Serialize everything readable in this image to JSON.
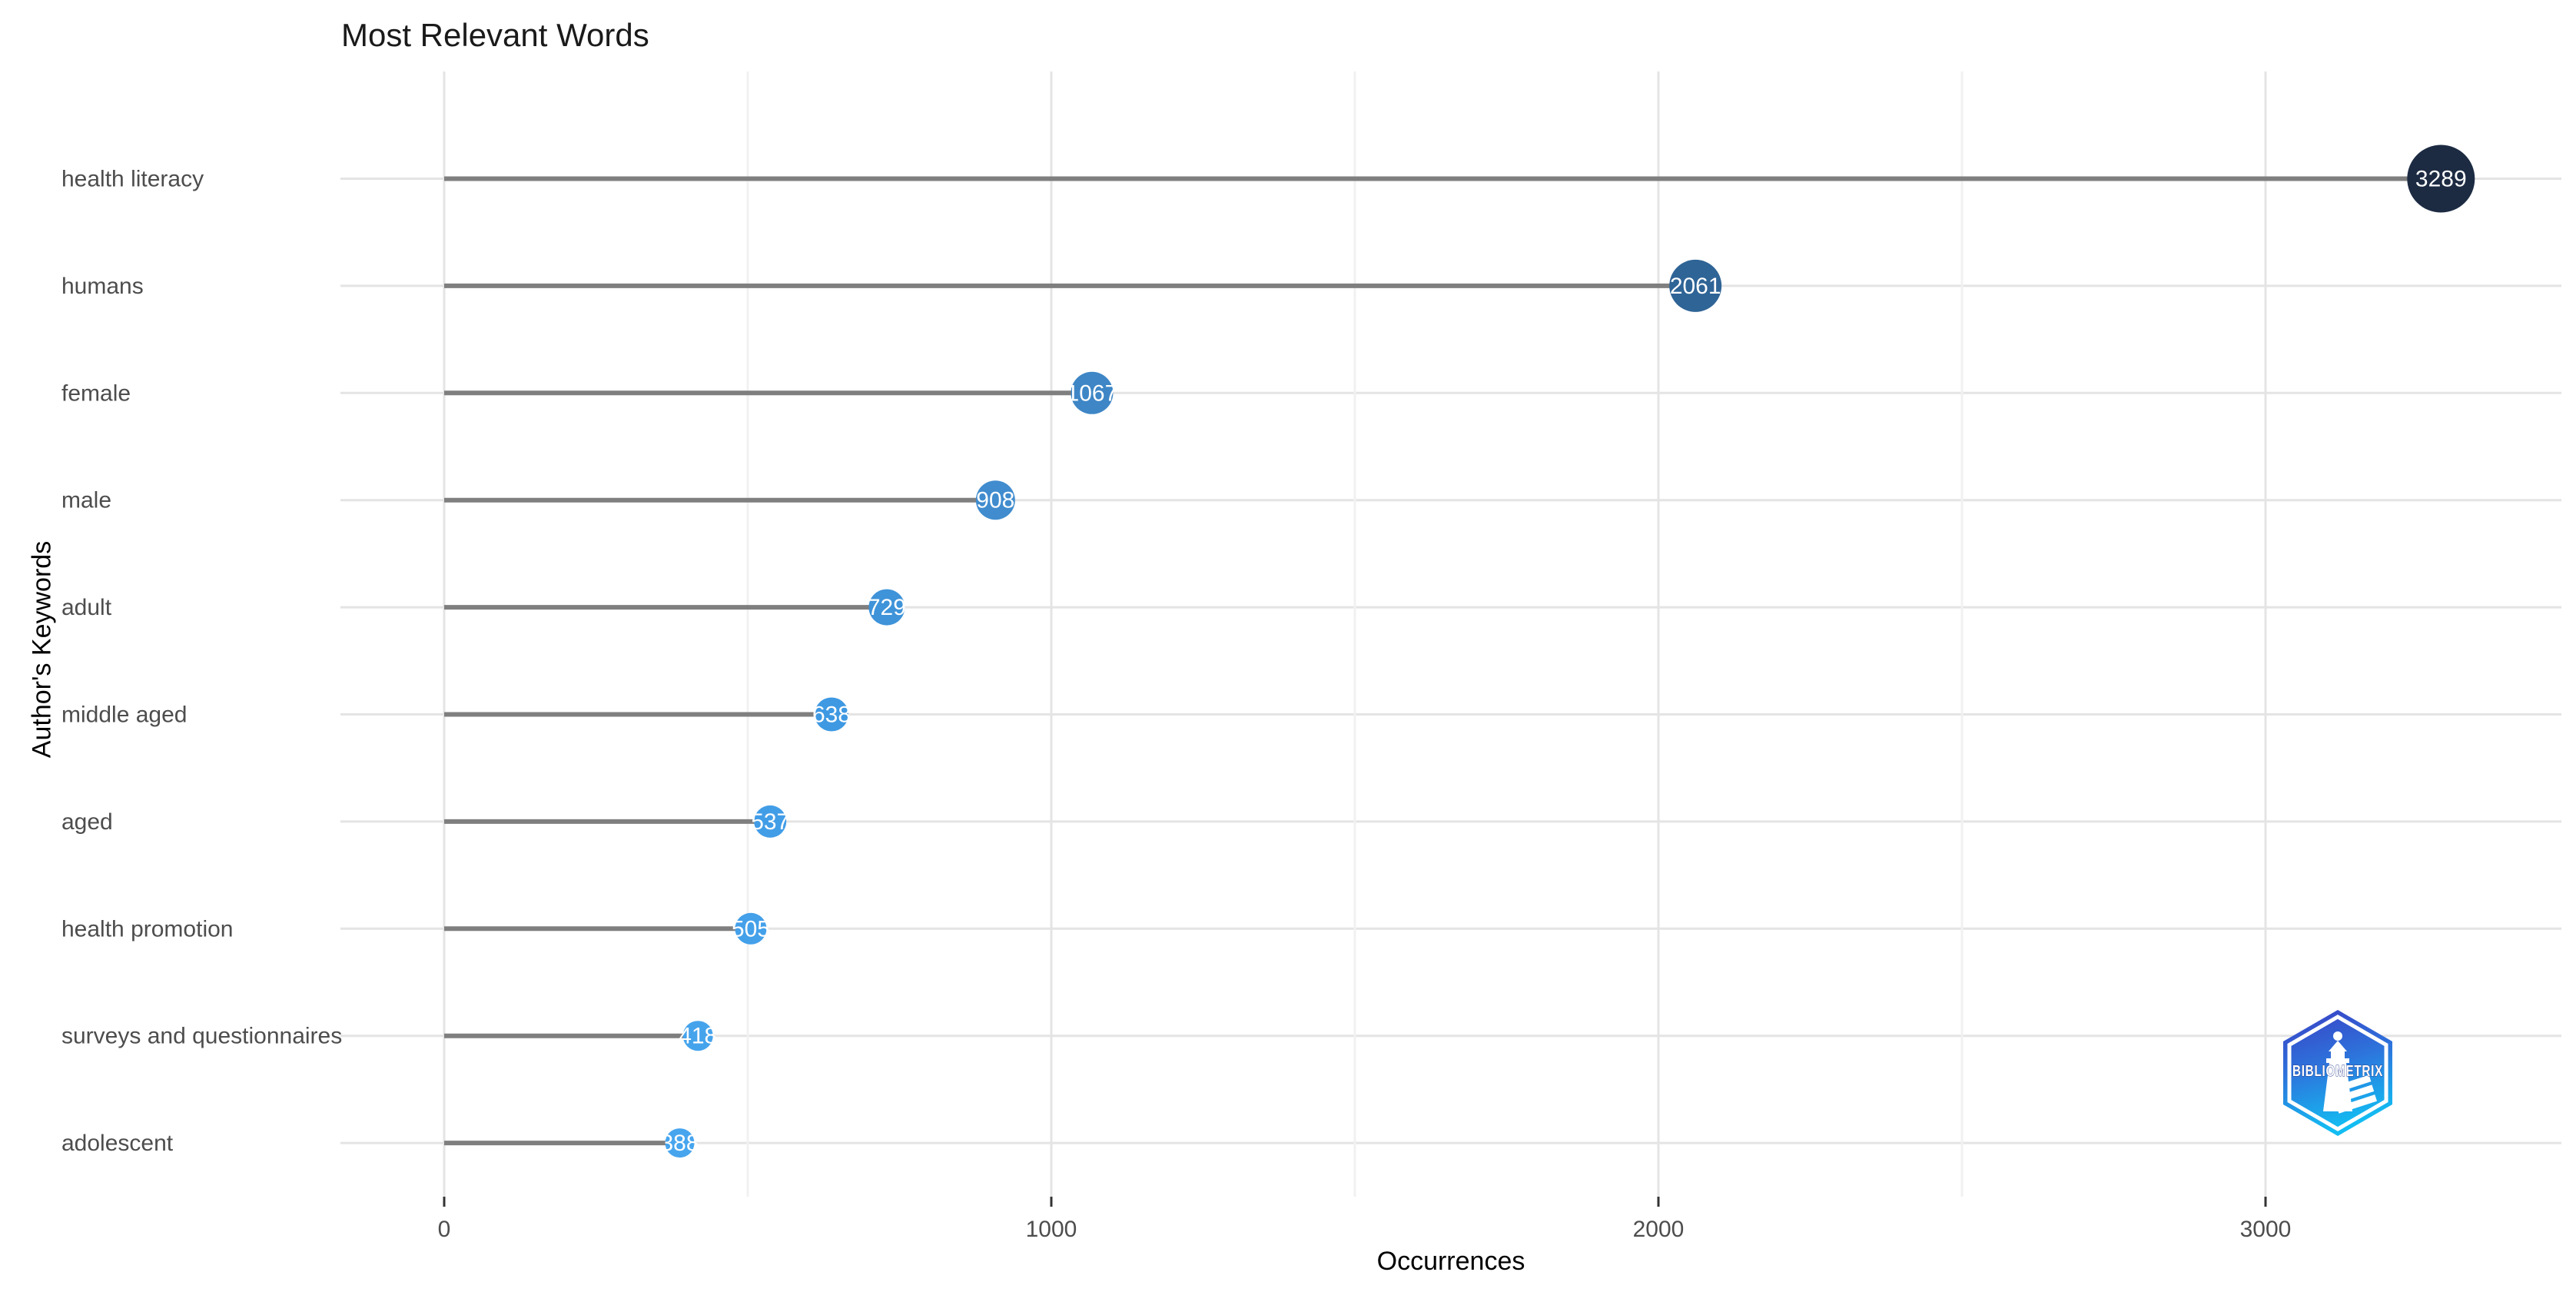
{
  "title": "Most Relevant Words",
  "axes": {
    "x_title": "Occurrences",
    "y_title": "Author's Keywords"
  },
  "watermark": {
    "text": "BIBLIOMETRIX"
  },
  "colors": {
    "background": "#ffffff",
    "stem": "#7f7f7f",
    "grid_major": "#e4e4e4",
    "grid_minor": "#f1f1f1",
    "axis_text": "#4d4d4d",
    "tick_mark": "#333333",
    "point_label": "#ffffff",
    "logo_top": "#3a3fc4",
    "logo_mid": "#2d74dc",
    "logo_bottom": "#13bdf2"
  },
  "chart_data": {
    "type": "bar",
    "subtype": "lollipop",
    "orientation": "horizontal",
    "title": "Most Relevant Words",
    "xlabel": "Occurrences",
    "ylabel": "Author's Keywords",
    "categories": [
      "health literacy",
      "humans",
      "female",
      "male",
      "adult",
      "middle aged",
      "aged",
      "health promotion",
      "surveys and questionnaires",
      "adolescent"
    ],
    "values": [
      3289,
      2061,
      1067,
      908,
      729,
      638,
      537,
      505,
      418,
      388
    ],
    "point_colors": [
      "#1C2B42",
      "#2F6496",
      "#3E86C6",
      "#408CCE",
      "#3E93D9",
      "#3F99E2",
      "#429DE7",
      "#44A0E9",
      "#45A3EC",
      "#47A5EE"
    ],
    "point_radii": [
      44,
      34,
      27.5,
      25.5,
      23.5,
      22,
      21,
      20.5,
      19.5,
      19
    ],
    "xlim": [
      0,
      3480
    ],
    "x_ticks": [
      0,
      1000,
      2000,
      3000
    ],
    "x_minor_ticks": [
      500,
      1500,
      2500
    ],
    "grid": true,
    "legend": "none"
  }
}
